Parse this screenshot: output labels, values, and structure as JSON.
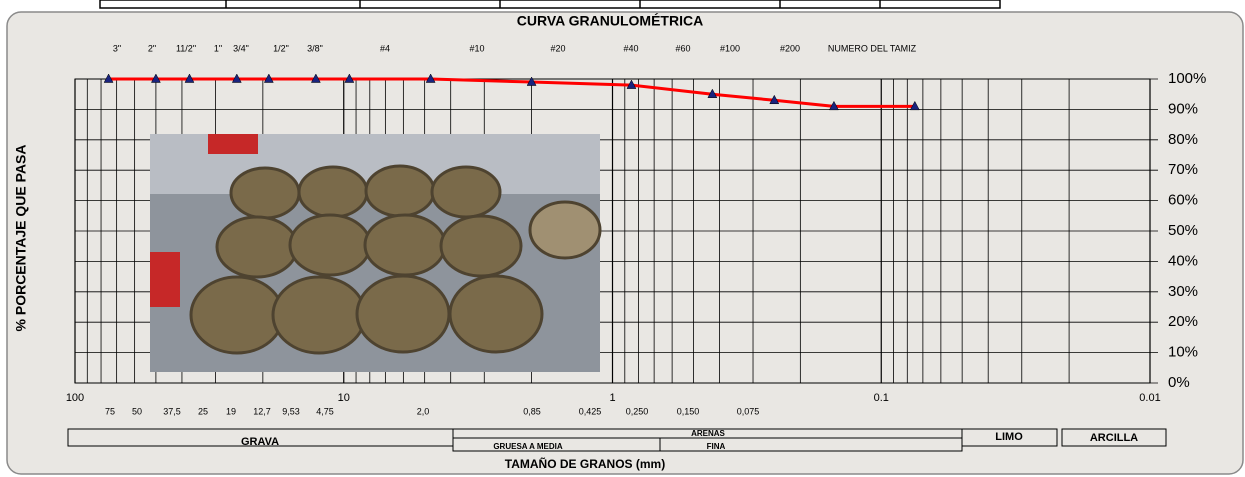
{
  "chart_data": {
    "type": "line",
    "title": "CURVA GRANULOMÉTRICA",
    "x_label": "TAMAÑO DE GRANOS (mm)",
    "y_label": "% PORCENTAJE QUE PASA",
    "log_x": true,
    "grid": true,
    "x": [
      75,
      50,
      37.5,
      25,
      19,
      12.7,
      9.53,
      4.75,
      2.0,
      0.85,
      0.425,
      0.25,
      0.15,
      0.075
    ],
    "series": [
      {
        "color": "#ff0000",
        "marker_color": "#1a237e",
        "values": [
          100,
          100,
          100,
          100,
          100,
          100,
          100,
          100,
          99,
          98,
          95,
          93,
          91,
          91
        ]
      }
    ],
    "xlim": [
      100,
      0.01
    ],
    "xticks": [
      100,
      10,
      1,
      0.1,
      0.01
    ],
    "xminorticks": [
      90,
      80,
      70,
      60,
      50,
      40,
      30,
      20,
      9,
      8,
      7,
      6,
      5,
      4,
      3,
      2,
      0.9,
      0.8,
      0.7,
      0.6,
      0.5,
      0.4,
      0.3,
      0.2,
      0.09,
      0.08,
      0.07,
      0.06,
      0.05,
      0.04,
      0.03,
      0.02
    ],
    "ylim": [
      0,
      100
    ],
    "yticks": [
      {
        "value": 0,
        "label": "0%"
      },
      {
        "value": 10,
        "label": "10%"
      },
      {
        "value": 20,
        "label": "20%"
      },
      {
        "value": 30,
        "label": "30%"
      },
      {
        "value": 40,
        "label": "40%"
      },
      {
        "value": 50,
        "label": "50%"
      },
      {
        "value": 60,
        "label": "60%"
      },
      {
        "value": 70,
        "label": "70%"
      },
      {
        "value": 80,
        "label": "80%"
      },
      {
        "value": 90,
        "label": "90%"
      },
      {
        "value": 100,
        "label": "100%"
      }
    ],
    "sieve_labels": [
      "3\"",
      "2\"",
      "11/2\"",
      "1\"",
      "3/4\"",
      "1/2\"",
      "3/8\"",
      "#4",
      "#10",
      "#20",
      "#40",
      "#60",
      "#100",
      "#200",
      "NUMERO DEL TAMIZ"
    ],
    "size_labels": [
      "75",
      "50",
      "37,5",
      "25",
      "19",
      "12,7",
      "9,53",
      "4,75",
      "2,0",
      "0,85",
      "0,425",
      "0,250",
      "0,150",
      "0,075"
    ],
    "soil_classes": {
      "grava": "GRAVA",
      "arenas": "ARENAS",
      "gruesa": "GRUESA A MEDIA",
      "fina": "FINA",
      "limo": "LIMO",
      "arcilla": "ARCILLA"
    }
  }
}
